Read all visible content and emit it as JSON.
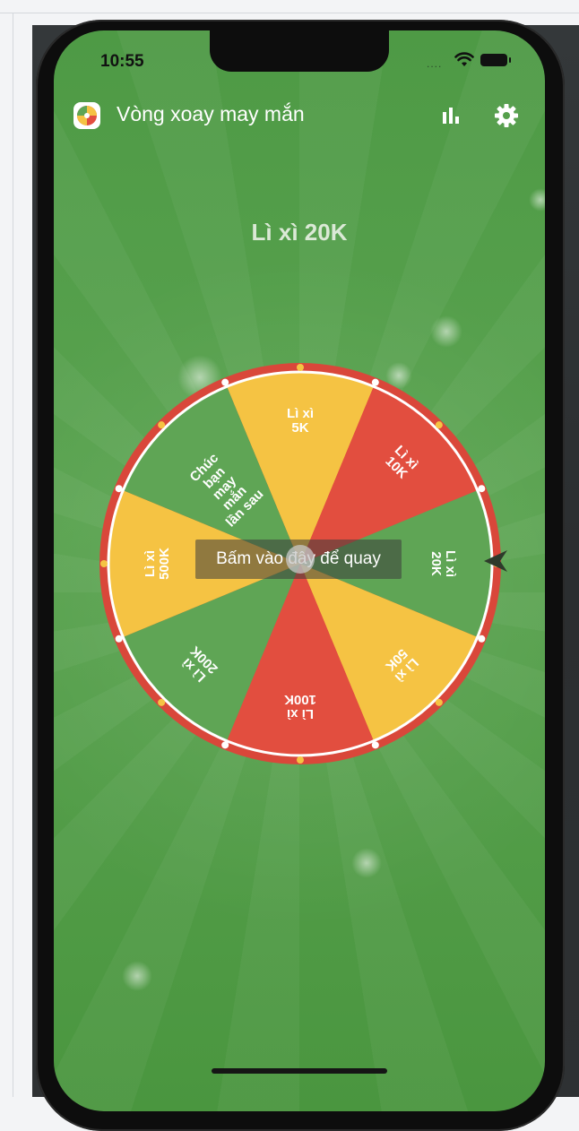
{
  "status_bar": {
    "time": "10:55",
    "signal_dots": "...."
  },
  "header": {
    "app_icon": "spin-wheel-icon",
    "title": "Vòng xoay may mắn",
    "stats_icon": "bar-chart-icon",
    "settings_icon": "gear-icon"
  },
  "result": {
    "text": "Lì xì 20K"
  },
  "wheel": {
    "spin_label": "Bấm vào đây để quay",
    "segments": [
      {
        "lines": [
          "Lì xì",
          "5K"
        ],
        "color": "#f5c343"
      },
      {
        "lines": [
          "Lì xì",
          "10K"
        ],
        "color": "#e24e3f"
      },
      {
        "lines": [
          "Lì xì",
          "20K"
        ],
        "color": "#5fa555"
      },
      {
        "lines": [
          "Lì xì",
          "50K"
        ],
        "color": "#f5c343"
      },
      {
        "lines": [
          "Lì xì",
          "100K"
        ],
        "color": "#e24e3f"
      },
      {
        "lines": [
          "Lì xì",
          "200K"
        ],
        "color": "#5fa555"
      },
      {
        "lines": [
          "Lì xì",
          "500K"
        ],
        "color": "#f5c343"
      },
      {
        "lines": [
          "Chúc",
          "bạn",
          "may",
          "mắn",
          "lần sau"
        ],
        "color": "#5fa555"
      }
    ],
    "rim_color": "#d9473a",
    "pointer_icon": "pointer-arrow-icon"
  }
}
